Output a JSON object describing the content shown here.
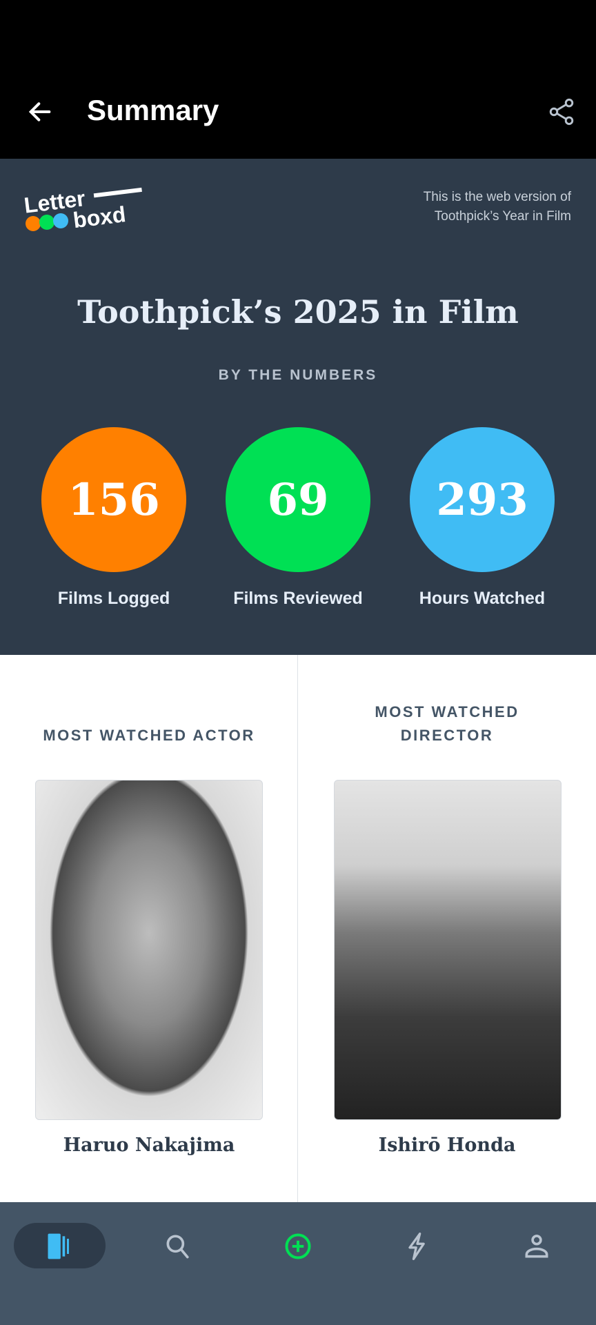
{
  "header": {
    "title": "Summary",
    "back_icon": "arrow-left-icon",
    "share_icon": "share-icon"
  },
  "banner": {
    "logo_text": "Letterboxd",
    "web_note_line1": "This is the web version of",
    "web_note_line2": "Toothpick’s Year in Film",
    "year_title": "Toothpick’s 2025 in Film",
    "section_label": "BY THE NUMBERS",
    "stats": [
      {
        "value": "156",
        "label": "Films Logged",
        "color": "#ff8000"
      },
      {
        "value": "69",
        "label": "Films Reviewed",
        "color": "#00e054"
      },
      {
        "value": "293",
        "label": "Hours Watched",
        "color": "#40bcf4"
      }
    ]
  },
  "most_watched": {
    "actor": {
      "heading": "MOST WATCHED ACTOR",
      "name": "Haruo Nakajima"
    },
    "director": {
      "heading_line1": "MOST WATCHED",
      "heading_line2": "DIRECTOR",
      "name": "Ishirō Honda"
    }
  },
  "nav": {
    "items": [
      "films-icon",
      "search-icon",
      "add-icon",
      "activity-icon",
      "profile-icon"
    ],
    "active": "films-icon",
    "active_color": "#40bcf4",
    "add_color": "#00e054"
  }
}
